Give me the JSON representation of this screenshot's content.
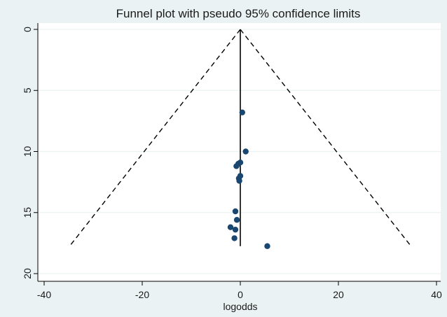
{
  "chart_data": {
    "type": "scatter",
    "title": "Funnel plot with pseudo 95% confidence limits",
    "xlabel": "logodds",
    "ylabel": "",
    "xlim": [
      -42,
      40
    ],
    "ylim": [
      0,
      20
    ],
    "y_reversed": true,
    "grid": true,
    "legend": "none",
    "x_ticks": [
      -40,
      -20,
      0,
      20,
      40
    ],
    "y_ticks": [
      0,
      5,
      10,
      15,
      20
    ],
    "center_line": {
      "x": 0,
      "y_from": 0,
      "y_to": 17.75
    },
    "confidence_limits": {
      "apex": [
        0,
        0
      ],
      "left": [
        -34.8,
        17.75
      ],
      "right": [
        34.8,
        17.75
      ]
    },
    "points": [
      {
        "x": 0.4,
        "y": 6.8
      },
      {
        "x": 1.1,
        "y": 10.0
      },
      {
        "x": 0.0,
        "y": 10.9
      },
      {
        "x": -0.4,
        "y": 11.0
      },
      {
        "x": -0.8,
        "y": 11.2
      },
      {
        "x": 0.0,
        "y": 12.0
      },
      {
        "x": -0.3,
        "y": 12.2
      },
      {
        "x": -0.2,
        "y": 12.4
      },
      {
        "x": -1.0,
        "y": 14.9
      },
      {
        "x": -0.7,
        "y": 15.6
      },
      {
        "x": -2.0,
        "y": 16.2
      },
      {
        "x": -1.0,
        "y": 16.4
      },
      {
        "x": -1.2,
        "y": 17.1
      },
      {
        "x": 5.5,
        "y": 17.75
      }
    ]
  },
  "colors": {
    "background": "#eaf2f3",
    "plot_background": "#ffffff",
    "grid": "#eaf2f3",
    "marker": "#1a476f",
    "line": "#000000"
  }
}
